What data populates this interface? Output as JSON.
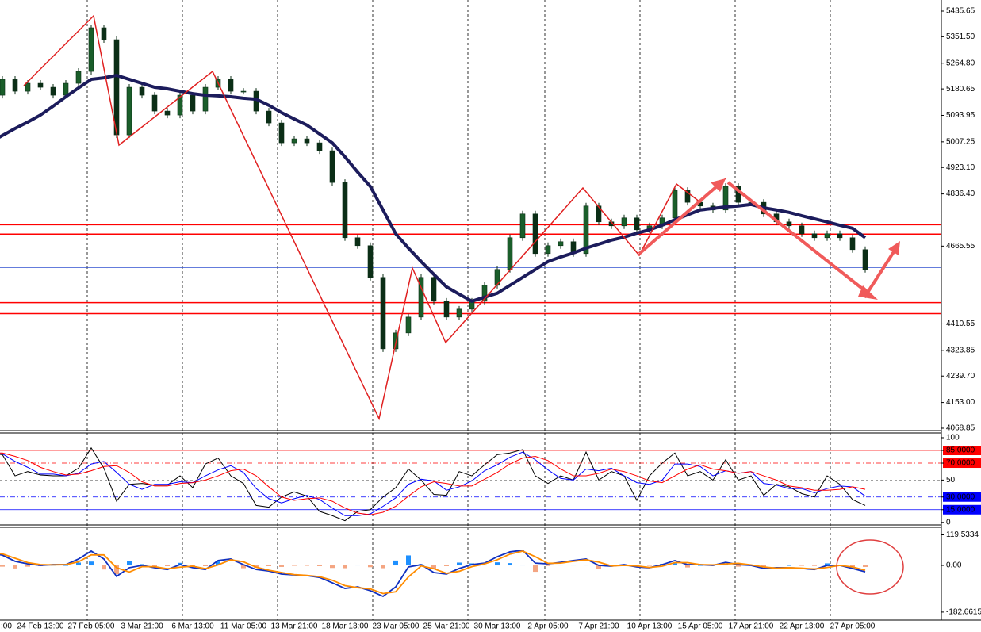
{
  "chart_data": [
    {
      "type": "candlestick",
      "categories": [
        ":00",
        null,
        null,
        null,
        "24 Feb 13:00",
        null,
        null,
        null,
        "27 Feb 05:00",
        null,
        null,
        null,
        "3 Mar 21:00",
        null,
        null,
        null,
        "6 Mar 13:00",
        null,
        null,
        null,
        "11 Mar 05:00",
        null,
        null,
        null,
        "13 Mar 21:00",
        null,
        null,
        null,
        "18 Mar 13:00",
        null,
        null,
        null,
        "23 Mar 05:00",
        null,
        null,
        null,
        "25 Mar 21:00",
        null,
        null,
        null,
        "30 Mar 13:00",
        null,
        null,
        null,
        "2 Apr 05:00",
        null,
        null,
        null,
        "7 Apr 21:00",
        null,
        null,
        null,
        "10 Apr 13:00",
        null,
        null,
        null,
        "15 Apr 05:00",
        null,
        null,
        null,
        "17 Apr 21:00",
        null,
        null,
        null,
        "22 Apr 13:00",
        null,
        null,
        null,
        "27 Apr 05:00",
        null
      ],
      "series": [
        {
          "type": "candlestick",
          "color": "#1a5e2a",
          "down_color": "#0b2e16",
          "values": [
            5160,
            5212,
            5173,
            5199,
            5186,
            5160,
            5199,
            5238,
            5381,
            5342,
            5030,
            5186,
            5160,
            5108,
            5095,
            5160,
            5108,
            5186,
            5212,
            5173,
            5173,
            5108,
            5069,
            5004,
            5017,
            5004,
            4978,
            4874,
            4693,
            4667,
            4563,
            4329,
            4381,
            4433,
            4563,
            4485,
            4433,
            4459,
            4485,
            4537,
            4589,
            4693,
            4771,
            4641,
            4667,
            4680,
            4641,
            4797,
            4745,
            4732,
            4758,
            4719,
            4732,
            4758,
            4848,
            4809,
            4797,
            4784,
            4861,
            4809,
            4809,
            4771,
            4745,
            4732,
            4706,
            4693,
            4706,
            4693,
            4654,
            4589
          ]
        },
        {
          "type": "line",
          "color": "#1c1c5c",
          "values": [
            5004,
            5028,
            5051,
            5072,
            5095,
            5124,
            5155,
            5184,
            5212,
            5217,
            5225,
            5212,
            5199,
            5186,
            5181,
            5173,
            5165,
            5160,
            5158,
            5155,
            5150,
            5147,
            5127,
            5103,
            5082,
            5062,
            5033,
            5004,
            4958,
            4908,
            4861,
            4784,
            4706,
            4659,
            4615,
            4573,
            4532,
            4508,
            4485,
            4498,
            4511,
            4537,
            4563,
            4589,
            4615,
            4630,
            4643,
            4659,
            4672,
            4685,
            4695,
            4708,
            4719,
            4734,
            4752,
            4768,
            4784,
            4789,
            4794,
            4797,
            4802,
            4791,
            4784,
            4776,
            4765,
            4755,
            4745,
            4734,
            4724,
            4693
          ]
        }
      ],
      "ylim": [
        4061,
        5472
      ],
      "yticks": [
        5435.65,
        {
          "value": 5351.5,
          "label": "5351.50"
        },
        {
          "value": 5264.8,
          "label": "5264.80"
        },
        5180.65,
        5093.95,
        5007.25,
        {
          "value": 4923.1,
          "label": "4923.10"
        },
        {
          "value": 4836.4,
          "label": "4836.40"
        },
        4665.55,
        4410.55,
        4323.85,
        {
          "value": 4239.7,
          "label": "4239.70"
        },
        {
          "value": 4153,
          "label": "4153.00"
        },
        4068.85
      ],
      "levels": [
        4735.72,
        4704.92,
        4595.06,
        4480.37,
        4444.15
      ],
      "level_colors": [
        "#ff0000",
        "#ff0000",
        "#3050d0",
        "#ff0000",
        "#ff0000"
      ],
      "grid": true
    },
    {
      "type": "line",
      "series": [
        {
          "color": "#000000",
          "values": [
            82,
            80,
            55,
            60,
            56,
            55,
            55,
            64,
            88,
            64,
            25,
            45,
            46,
            44,
            44,
            55,
            41,
            69,
            76,
            55,
            46,
            20,
            18,
            30,
            36,
            31,
            13,
            8,
            2,
            13,
            15,
            30,
            41,
            63,
            50,
            33,
            32,
            60,
            55,
            68,
            80,
            82,
            86,
            55,
            46,
            55,
            50,
            83,
            50,
            60,
            55,
            26,
            55,
            70,
            82,
            55,
            60,
            50,
            74,
            50,
            55,
            32,
            45,
            42,
            34,
            30,
            55,
            45,
            27,
            20
          ]
        },
        {
          "color": "#0000ff",
          "values": [
            82,
            81,
            72,
            65,
            57,
            57,
            55,
            58,
            69,
            72,
            59,
            45,
            39,
            45,
            45,
            48,
            47,
            55,
            62,
            67,
            59,
            40,
            28,
            23,
            28,
            32,
            27,
            17,
            8,
            8,
            10,
            19,
            29,
            45,
            51,
            49,
            38,
            42,
            49,
            61,
            68,
            77,
            83,
            74,
            62,
            52,
            50,
            63,
            61,
            64,
            55,
            47,
            45,
            50,
            69,
            69,
            66,
            55,
            61,
            58,
            60,
            46,
            44,
            40,
            40,
            35,
            40,
            43,
            42,
            31
          ]
        },
        {
          "color": "#ff0000",
          "values": [
            82,
            82,
            78,
            73,
            65,
            60,
            56,
            57,
            61,
            66,
            67,
            59,
            48,
            43,
            43,
            46,
            47,
            50,
            55,
            61,
            63,
            55,
            42,
            30,
            26,
            28,
            29,
            25,
            17,
            11,
            9,
            12,
            19,
            31,
            42,
            48,
            46,
            43,
            43,
            51,
            59,
            69,
            76,
            78,
            73,
            63,
            55,
            55,
            58,
            63,
            60,
            55,
            49,
            47,
            55,
            63,
            68,
            63,
            61,
            58,
            60,
            55,
            50,
            43,
            41,
            38,
            38,
            39,
            42,
            39
          ]
        }
      ],
      "ylim": [
        -3,
        105.6
      ],
      "yticks": [
        100,
        {
          "value": 85,
          "label": "85.0000"
        },
        {
          "value": 70,
          "label": "70.0000"
        },
        50,
        {
          "value": 30,
          "label": "30.0000"
        },
        {
          "value": 15,
          "label": "15.0000"
        },
        0
      ],
      "tick_colors": [
        null,
        "#ff0000",
        "#ff0000",
        "#808080",
        "#0000ff",
        "#0000ff",
        null
      ],
      "tick_dash": [
        null,
        "solid",
        "dashdot",
        "dash",
        "dashdot",
        "solid",
        null
      ]
    },
    {
      "type": "histogram",
      "series": [
        {
          "type": "bar",
          "color": "#1e90ff",
          "down_color": "#f4a582",
          "values": [
            0,
            -5,
            -12,
            -5,
            -3,
            1,
            0,
            11,
            15,
            -16,
            -34,
            17,
            5,
            -4,
            -3,
            10,
            -6,
            -3,
            17,
            3,
            -11,
            -9,
            -3,
            -6,
            -1,
            -1,
            -3,
            -10,
            -11,
            3,
            -7,
            -11,
            19,
            39,
            5,
            -15,
            -3,
            11,
            8,
            3,
            12,
            9,
            3,
            -25,
            -2,
            3,
            3,
            3,
            -13,
            -1,
            3,
            -4,
            -1,
            6,
            8,
            -8,
            0,
            -2,
            6,
            -5,
            -2,
            -6,
            2,
            0,
            -1,
            -2,
            8,
            0,
            -6,
            -6
          ]
        },
        {
          "type": "line",
          "color": "#1030c0",
          "values": [
            50,
            40,
            16,
            6,
            0,
            3,
            3,
            25,
            56,
            25,
            -43,
            -9,
            0,
            -9,
            -16,
            3,
            -9,
            -16,
            19,
            25,
            3,
            -16,
            -22,
            -34,
            -37,
            -40,
            -47,
            -68,
            -90,
            -84,
            -99,
            -121,
            -84,
            -6,
            3,
            -28,
            -34,
            -12,
            3,
            9,
            34,
            53,
            59,
            9,
            6,
            12,
            19,
            25,
            0,
            -3,
            3,
            -6,
            -9,
            3,
            19,
            3,
            3,
            0,
            12,
            3,
            0,
            -12,
            -9,
            -9,
            -12,
            -16,
            0,
            0,
            -12,
            -25
          ]
        },
        {
          "type": "line",
          "color": "#ff8c00",
          "values": [
            50,
            45,
            28,
            11,
            3,
            2,
            3,
            14,
            41,
            41,
            -9,
            -26,
            -5,
            -5,
            -13,
            -7,
            -3,
            -13,
            2,
            22,
            14,
            -7,
            -19,
            -28,
            -36,
            -39,
            -44,
            -58,
            -79,
            -87,
            -92,
            -110,
            -103,
            -45,
            -2,
            -13,
            -31,
            -23,
            -5,
            6,
            22,
            44,
            56,
            34,
            8,
            9,
            16,
            22,
            13,
            -2,
            0,
            -2,
            -8,
            -3,
            11,
            11,
            3,
            2,
            6,
            8,
            2,
            -6,
            -11,
            -9,
            -11,
            -14,
            -8,
            0,
            -6,
            -19
          ]
        }
      ],
      "ylim": [
        -214,
        149
      ],
      "yticks": [
        119.5334,
        {
          "value": 0,
          "label": "0.00"
        },
        -182.6615
      ]
    }
  ]
}
